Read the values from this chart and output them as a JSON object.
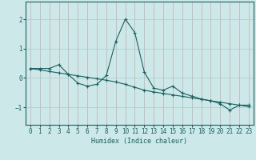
{
  "xlabel": "Humidex (Indice chaleur)",
  "xlim": [
    -0.5,
    23.5
  ],
  "ylim": [
    -1.6,
    2.6
  ],
  "yticks": [
    -1,
    0,
    1,
    2
  ],
  "xticks": [
    0,
    1,
    2,
    3,
    4,
    5,
    6,
    7,
    8,
    9,
    10,
    11,
    12,
    13,
    14,
    15,
    16,
    17,
    18,
    19,
    20,
    21,
    22,
    23
  ],
  "bg_color": "#cce8e8",
  "grid_color": "#aacccc",
  "line_color": "#1a6060",
  "line1_x": [
    0,
    1,
    2,
    3,
    4,
    5,
    6,
    7,
    8,
    9,
    10,
    11,
    12,
    13,
    14,
    15,
    16,
    17,
    18,
    19,
    20,
    21,
    22,
    23
  ],
  "line1_y": [
    0.32,
    0.32,
    0.32,
    0.45,
    0.12,
    -0.18,
    -0.28,
    -0.22,
    0.08,
    1.25,
    2.0,
    1.55,
    0.2,
    -0.35,
    -0.42,
    -0.28,
    -0.52,
    -0.62,
    -0.72,
    -0.78,
    -0.88,
    -1.1,
    -0.93,
    -0.93
  ],
  "line3_x": [
    0,
    1,
    2,
    3,
    4,
    5,
    6,
    7,
    8,
    9,
    10,
    11,
    12,
    13,
    14,
    15,
    16,
    17,
    18,
    19,
    20,
    21,
    22,
    23
  ],
  "line3_y": [
    0.32,
    0.27,
    0.22,
    0.17,
    0.12,
    0.07,
    0.02,
    -0.03,
    -0.08,
    -0.14,
    -0.22,
    -0.32,
    -0.42,
    -0.48,
    -0.53,
    -0.58,
    -0.63,
    -0.68,
    -0.73,
    -0.78,
    -0.83,
    -0.88,
    -0.93,
    -0.98
  ]
}
